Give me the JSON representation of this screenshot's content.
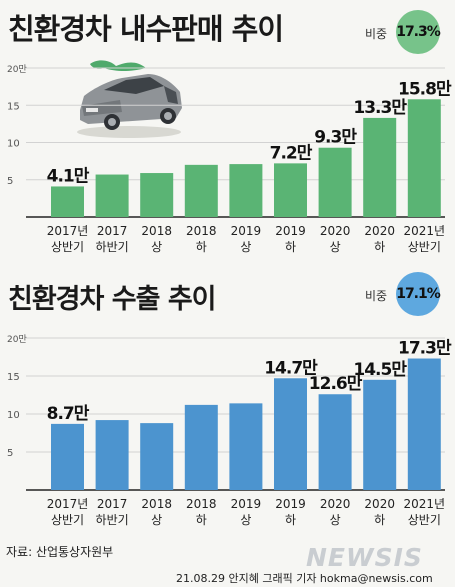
{
  "colors": {
    "domestic_bar": "#5ab474",
    "export_bar": "#4c94cf",
    "domestic_badge": "#77c38a",
    "export_badge": "#5ea8df",
    "axis_text": "#555555",
    "grid": "#d2d2d2"
  },
  "icons": [
    "car-icon"
  ],
  "chart_data": [
    {
      "type": "bar",
      "title": "친환경차 내수판매 추이",
      "share_label": "비중",
      "share_value": "17.3%",
      "unit_label": "20만",
      "ylim": [
        0,
        20
      ],
      "y_ticks": [
        "20만",
        "15",
        "10",
        "5"
      ],
      "categories": [
        [
          "2017년",
          "상반기"
        ],
        [
          "2017",
          "하반기"
        ],
        [
          "2018",
          "상"
        ],
        [
          "2018",
          "하"
        ],
        [
          "2019",
          "상"
        ],
        [
          "2019",
          "하"
        ],
        [
          "2020",
          "상"
        ],
        [
          "2020",
          "하"
        ],
        [
          "2021년",
          "상반기"
        ]
      ],
      "values": [
        4.1,
        5.7,
        5.9,
        7.0,
        7.1,
        7.2,
        9.3,
        13.3,
        15.8
      ],
      "data_labels": [
        "4.1만",
        "",
        "",
        "",
        "",
        "7.2만",
        "9.3만",
        "13.3만",
        "15.8만"
      ]
    },
    {
      "type": "bar",
      "title": "친환경차 수출 추이",
      "share_label": "비중",
      "share_value": "17.1%",
      "unit_label": "20만",
      "ylim": [
        0,
        20
      ],
      "y_ticks": [
        "20만",
        "15",
        "10",
        "5"
      ],
      "categories": [
        [
          "2017년",
          "상반기"
        ],
        [
          "2017",
          "하반기"
        ],
        [
          "2018",
          "상"
        ],
        [
          "2018",
          "하"
        ],
        [
          "2019",
          "상"
        ],
        [
          "2019",
          "하"
        ],
        [
          "2020",
          "상"
        ],
        [
          "2020",
          "하"
        ],
        [
          "2021년",
          "상반기"
        ]
      ],
      "values": [
        8.7,
        9.2,
        8.8,
        11.2,
        11.4,
        14.7,
        12.6,
        14.5,
        17.3
      ],
      "data_labels": [
        "8.7만",
        "",
        "",
        "",
        "",
        "14.7만",
        "12.6만",
        "14.5만",
        "17.3만"
      ]
    }
  ],
  "footer": {
    "source": "자료: 산업통상자원부",
    "credit": "21.08.29 안지혜 그래픽 기자 hokma@newsis.com",
    "logo": "NEWSIS"
  }
}
